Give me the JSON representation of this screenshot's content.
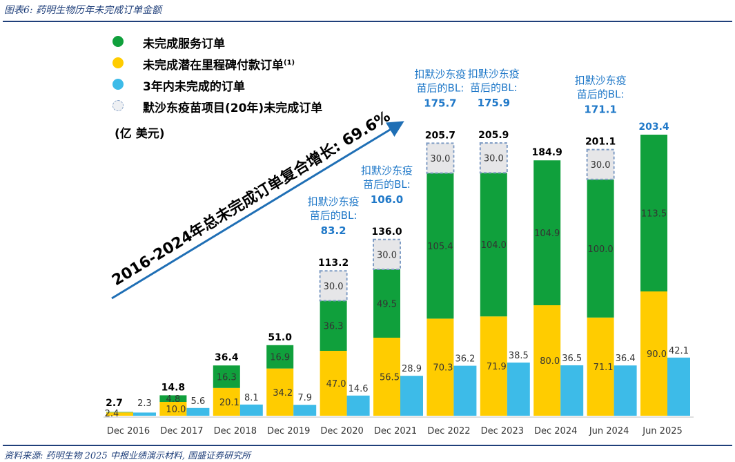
{
  "header": "图表6:  药明生物历年未完成订单金额",
  "footer": "资料来源:  药明生物 2025 中报业绩演示材料,  国盛证券研究所",
  "legend": [
    {
      "label": "未完成服务订单",
      "icon": "green-dot",
      "color": "#10a03c"
    },
    {
      "label": "未完成潜在里程碑付款订单",
      "sup": "(1)",
      "icon": "yellow-dot",
      "color": "#ffcc00"
    },
    {
      "label": "3年内未完成的订单",
      "icon": "blue-dot",
      "color": "#3dbbe8"
    },
    {
      "label": "默沙东疫苗项目(20年)未完成订单",
      "icon": "dashed-gray-dot",
      "color": "#d9d9d9"
    }
  ],
  "unit": "(亿 美元)",
  "cagr_label": "2016-2024年总未完成订单复合增长: 69.6%",
  "chart_data": {
    "type": "bar",
    "categories": [
      "Dec 2016",
      "Dec 2017",
      "Dec 2018",
      "Dec 2019",
      "Dec 2020",
      "Dec 2021",
      "Dec 2022",
      "Dec 2023",
      "Dec 2024",
      "Jun 2024",
      "Jun 2025"
    ],
    "series": [
      {
        "name": "未完成潜在里程碑付款订单",
        "color": "#ffcc00",
        "values": [
          2.4,
          10.0,
          20.1,
          34.2,
          47.0,
          56.5,
          70.3,
          71.9,
          80.0,
          71.1,
          90.0
        ]
      },
      {
        "name": "未完成服务订单",
        "color": "#10a03c",
        "values": [
          0.3,
          4.8,
          16.3,
          16.9,
          36.3,
          49.5,
          105.4,
          104.0,
          104.9,
          100.0,
          113.5
        ]
      },
      {
        "name": "默沙东疫苗项目(20年)未完成订单",
        "color": "#d9d9d9",
        "values": [
          null,
          null,
          null,
          null,
          30.0,
          30.0,
          30.0,
          30.0,
          null,
          30.0,
          null
        ]
      },
      {
        "name": "3年内未完成的订单",
        "color": "#3dbbe8",
        "values": [
          2.3,
          5.6,
          8.1,
          7.9,
          14.6,
          28.9,
          36.2,
          38.5,
          36.5,
          36.4,
          42.1
        ]
      }
    ],
    "stacked_data_labels": [
      "2.4",
      "10.0",
      "20.1",
      "34.2",
      "47.0",
      "56.5",
      "70.3",
      "71.9",
      "80.0",
      "71.1",
      "90.0"
    ],
    "green_data_labels": [
      "",
      "4.8",
      "16.3",
      "16.9",
      "36.3",
      "49.5",
      "105.4",
      "104.0",
      "104.9",
      "100.0",
      "113.5"
    ],
    "gray_data_labels": [
      "",
      "",
      "",
      "",
      "30.0",
      "30.0",
      "30.0",
      "30.0",
      "",
      "30.0",
      ""
    ],
    "blue_data_labels": [
      "2.3",
      "5.6",
      "8.1",
      "7.9",
      "14.6",
      "28.9",
      "36.2",
      "38.5",
      "36.5",
      "36.4",
      "42.1"
    ],
    "totals": [
      "2.7",
      "14.8",
      "36.4",
      "51.0",
      "113.2",
      "136.0",
      "205.7",
      "205.9",
      "184.9",
      "201.1",
      "203.4"
    ],
    "total_colors": [
      "#000000",
      "#000000",
      "#000000",
      "#000000",
      "#000000",
      "#000000",
      "#000000",
      "#000000",
      "#000000",
      "#000000",
      "#1f78c8"
    ],
    "after_merck": [
      null,
      null,
      null,
      null,
      {
        "line1": "扣默沙东疫",
        "line2": "苗后的BL:",
        "value": "83.2"
      },
      {
        "line1": "扣默沙东疫",
        "line2": "苗后的BL:",
        "value": "106.0"
      },
      {
        "line1": "扣默沙东疫",
        "line2": "苗后的BL:",
        "value": "175.7"
      },
      {
        "line1": "扣默沙东疫",
        "line2": "苗后的BL:",
        "value": "175.9"
      },
      null,
      {
        "line1": "扣默沙东疫",
        "line2": "苗后的BL:",
        "value": "171.1"
      },
      null
    ],
    "xlabel": "",
    "ylabel": "",
    "ylim": [
      0,
      215
    ],
    "grid": false,
    "legend_position": "top-left"
  }
}
